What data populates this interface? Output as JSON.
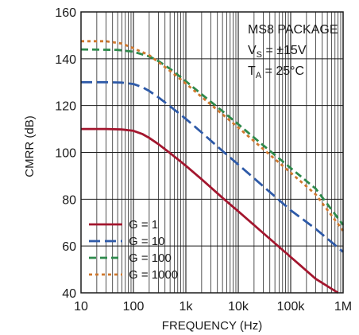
{
  "chart_data": {
    "type": "line",
    "title": "",
    "xlabel": "FREQUENCY (Hz)",
    "ylabel": "CMRR (dB)",
    "x_scale": "log",
    "xlim": [
      10,
      1000000
    ],
    "ylim": [
      40,
      160
    ],
    "x_ticks": [
      10,
      100,
      1000,
      10000,
      100000,
      1000000
    ],
    "x_tick_labels": [
      "10",
      "100",
      "1k",
      "10k",
      "100k",
      "1M"
    ],
    "y_ticks": [
      40,
      60,
      80,
      100,
      120,
      140,
      160
    ],
    "y_tick_labels": [
      "40",
      "60",
      "80",
      "100",
      "120",
      "140",
      "160"
    ],
    "grid": true,
    "legend_position": "bottom-left",
    "annotations": {
      "line1": "MS8 PACKAGE",
      "line2_main": "V",
      "line2_sub": "S",
      "line2_rest": " = ±15V",
      "line3_main": "T",
      "line3_sub": "A",
      "line3_rest": " = 25°C"
    },
    "series": [
      {
        "name": "G = 1",
        "color": "#a3162e",
        "dash": "solid",
        "x": [
          10,
          30,
          60,
          100,
          150,
          200,
          300,
          500,
          1000,
          2000,
          5000,
          10000,
          30000,
          100000,
          300000,
          800000
        ],
        "y": [
          110,
          110,
          109.8,
          109.2,
          107.8,
          106.2,
          103.5,
          99.7,
          94.3,
          88.5,
          80.6,
          74.8,
          65.5,
          55.3,
          46,
          38.5
        ]
      },
      {
        "name": "G = 10",
        "color": "#2e5aa8",
        "dash": "long-dash",
        "x": [
          10,
          30,
          60,
          100,
          150,
          200,
          300,
          500,
          1000,
          2000,
          5000,
          10000,
          30000,
          100000,
          300000,
          1000000
        ],
        "y": [
          130,
          130,
          129.8,
          129.2,
          127.8,
          126.2,
          123.5,
          119.7,
          114.3,
          108.5,
          100.6,
          94.8,
          85.5,
          75.3,
          67.3,
          57.5
        ]
      },
      {
        "name": "G = 100",
        "color": "#2e8a4c",
        "dash": "medium-dash",
        "x": [
          10,
          50,
          100,
          200,
          300,
          500,
          1000,
          2000,
          5000,
          10000,
          30000,
          100000,
          300000,
          1000000
        ],
        "y": [
          144,
          143.8,
          143,
          141,
          139,
          135.7,
          130.4,
          124.8,
          117.6,
          112,
          103,
          93.3,
          84.5,
          69
        ]
      },
      {
        "name": "G = 1000",
        "color": "#d0782e",
        "dash": "dotted",
        "x": [
          10,
          30,
          60,
          100,
          200,
          300,
          500,
          1000,
          2000,
          5000,
          10000,
          30000,
          100000,
          300000,
          1000000
        ],
        "y": [
          147.5,
          147.5,
          146.5,
          144.5,
          141.5,
          138.5,
          134.8,
          129.4,
          123.7,
          116.3,
          110.6,
          101.4,
          91.3,
          82,
          66.5
        ]
      }
    ]
  }
}
